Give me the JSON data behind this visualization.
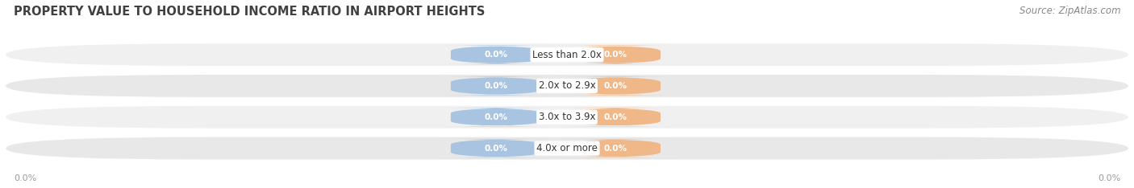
{
  "title": "PROPERTY VALUE TO HOUSEHOLD INCOME RATIO IN AIRPORT HEIGHTS",
  "source_text": "Source: ZipAtlas.com",
  "categories": [
    "Less than 2.0x",
    "2.0x to 2.9x",
    "3.0x to 3.9x",
    "4.0x or more"
  ],
  "without_mortgage": [
    0.0,
    0.0,
    0.0,
    0.0
  ],
  "with_mortgage": [
    0.0,
    0.0,
    0.0,
    0.0
  ],
  "without_mortgage_color": "#a8c4e0",
  "with_mortgage_color": "#f0b888",
  "row_bg_color": "#e8e8e8",
  "row_bg_color2": "#f0f0f0",
  "white_label_bg": "#ffffff",
  "title_fontsize": 10.5,
  "source_fontsize": 8.5,
  "bar_label_fontsize": 7.5,
  "cat_label_fontsize": 8.5,
  "legend_fontsize": 8.5,
  "axis_label": "0.0%",
  "figsize": [
    14.06,
    2.34
  ],
  "dpi": 100
}
